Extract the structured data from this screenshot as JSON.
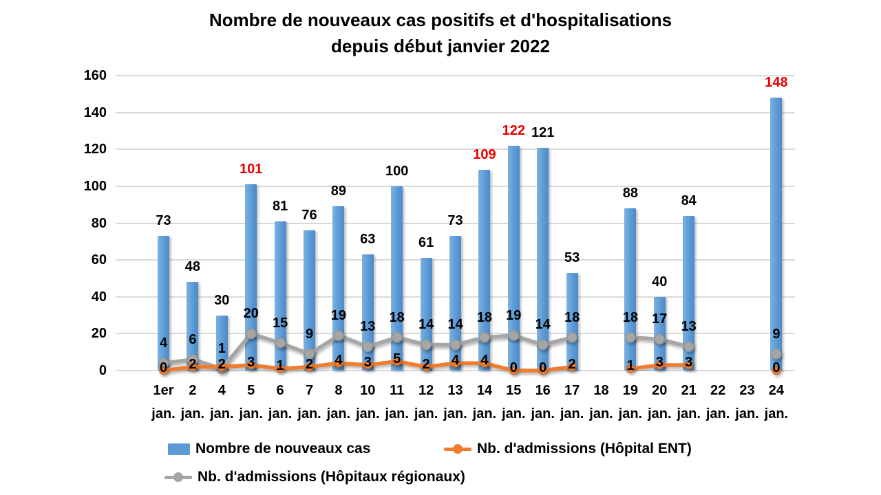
{
  "title": {
    "line1": "Nombre de nouveaux cas positifs et d'hospitalisations",
    "line2": "depuis début janvier 2022"
  },
  "colors": {
    "bar_blue": "#5B9BD5",
    "line_orange": "#ED7D31",
    "line_gray": "#A6A6A6",
    "label_red": "#E80000",
    "label_black": "#000000",
    "gridline": "#D9D9D9"
  },
  "legend": [
    {
      "label": "Nombre de nouveaux cas",
      "type": "bar",
      "color": "#5B9BD5"
    },
    {
      "label": "Nb. d'admissions (Hôpital ENT)",
      "type": "line",
      "color": "#ED7D31"
    },
    {
      "label": "Nb. d'admissions (Hôpitaux régionaux)",
      "type": "line",
      "color": "#A6A6A6"
    }
  ],
  "chart_data": {
    "type": "bar",
    "title": "Nombre de nouveaux cas positifs et d'hospitalisations depuis début janvier 2022",
    "categories": [
      "1er",
      "2",
      "4",
      "5",
      "6",
      "7",
      "8",
      "10",
      "11",
      "12",
      "13",
      "14",
      "15",
      "16",
      "17",
      "18",
      "19",
      "20",
      "21",
      "22",
      "23",
      "24"
    ],
    "category_sublabel": "jan.",
    "series": [
      {
        "name": "Nombre de nouveaux cas",
        "type": "bar",
        "color": "#5B9BD5",
        "values": [
          73,
          48,
          30,
          101,
          81,
          76,
          89,
          63,
          100,
          61,
          73,
          109,
          122,
          121,
          53,
          null,
          88,
          40,
          84,
          null,
          null,
          148
        ],
        "red_label_indices": [
          3,
          11,
          12,
          21
        ]
      },
      {
        "name": "Nb. d'admissions (Hôpital ENT)",
        "type": "line",
        "color": "#ED7D31",
        "values": [
          0,
          2,
          2,
          3,
          1,
          2,
          4,
          3,
          5,
          2,
          4,
          4,
          0,
          0,
          2,
          null,
          1,
          3,
          3,
          null,
          null,
          0
        ]
      },
      {
        "name": "Nb. d'admissions (Hôpitaux régionaux)",
        "type": "line",
        "color": "#A6A6A6",
        "values": [
          4,
          6,
          1,
          20,
          15,
          9,
          19,
          13,
          18,
          14,
          14,
          18,
          19,
          14,
          18,
          null,
          18,
          17,
          13,
          null,
          null,
          9
        ]
      }
    ],
    "xlabel": "",
    "ylabel": "",
    "ylim": [
      0,
      160
    ],
    "yticks": [
      0,
      20,
      40,
      60,
      80,
      100,
      120,
      140,
      160
    ],
    "grid": "horizontal",
    "legend_position": "bottom"
  }
}
